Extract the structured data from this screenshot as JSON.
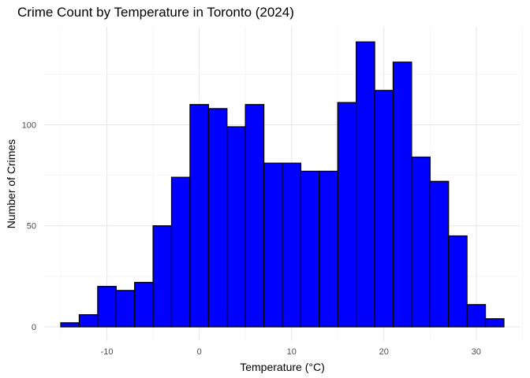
{
  "chart_data": {
    "type": "bar",
    "title": "Crime Count by Temperature in Toronto (2024)",
    "xlabel": "Temperature (°C)",
    "ylabel": "Number of Crimes",
    "bin_edges": [
      -15,
      -13,
      -11,
      -9,
      -7,
      -5,
      -3,
      -1,
      1,
      3,
      5,
      7,
      9,
      11,
      13,
      15,
      17,
      19,
      21,
      23,
      25,
      27,
      29,
      31,
      33
    ],
    "values": [
      2,
      6,
      20,
      18,
      22,
      50,
      74,
      110,
      108,
      99,
      110,
      81,
      81,
      77,
      77,
      111,
      141,
      117,
      131,
      84,
      72,
      45,
      11,
      4
    ],
    "x_ticks": [
      -10,
      0,
      10,
      20,
      30
    ],
    "y_ticks": [
      0,
      50,
      100
    ],
    "xlim": [
      -16.8,
      34.8
    ],
    "ylim": [
      -7,
      148.5
    ],
    "grid": true,
    "bar_fill": "#0000FF",
    "bar_stroke": "#000000"
  }
}
